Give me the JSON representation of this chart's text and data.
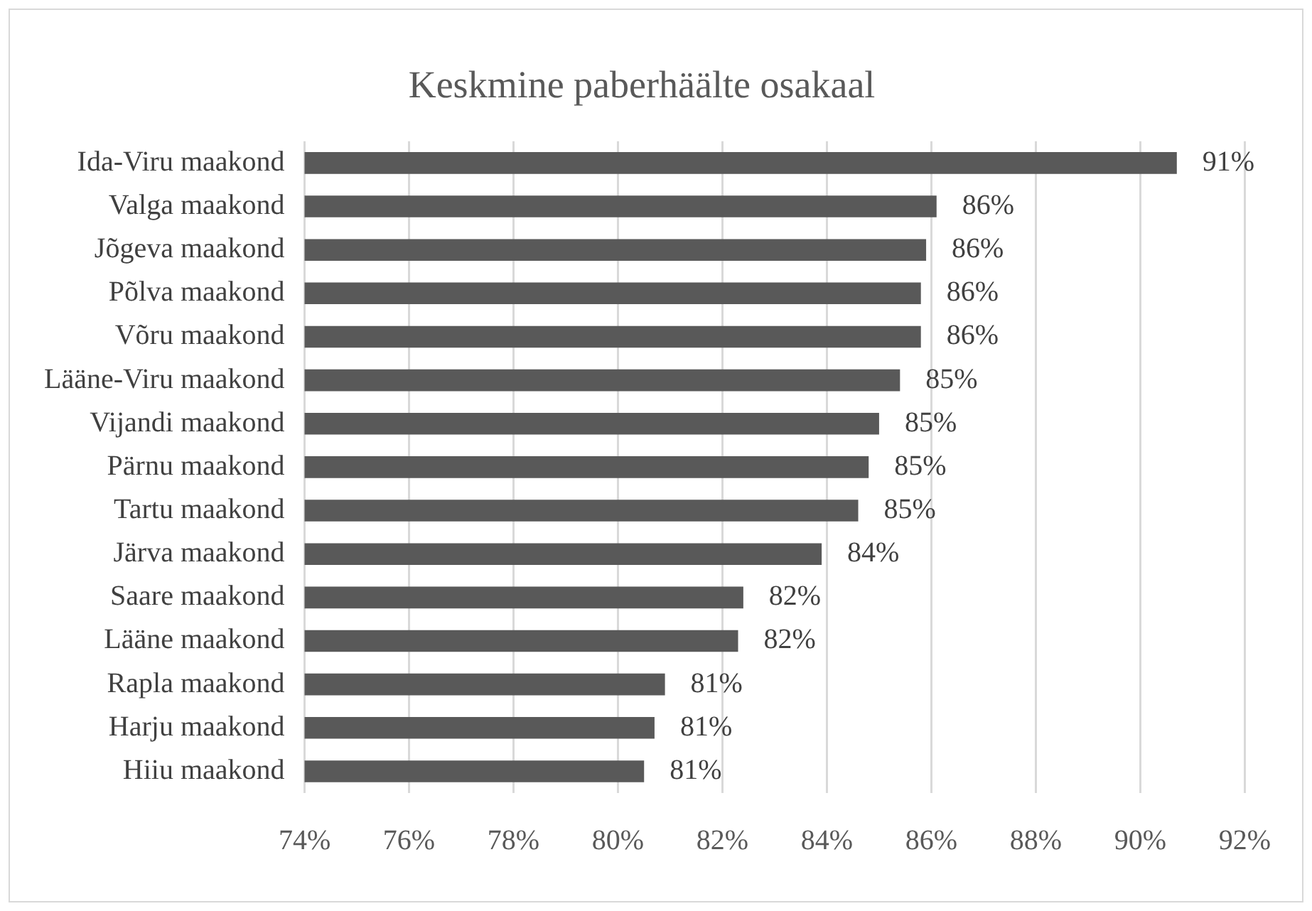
{
  "chart_data": {
    "type": "bar",
    "orientation": "horizontal",
    "title": "Keskmine paberhäälte osakaal",
    "categories": [
      "Ida-Viru maakond",
      "Valga maakond",
      "Jõgeva maakond",
      "Põlva maakond",
      "Võru maakond",
      "Lääne-Viru maakond",
      "Vijandi maakond",
      "Pärnu maakond",
      "Tartu maakond",
      "Järva maakond",
      "Saare maakond",
      "Lääne maakond",
      "Rapla maakond",
      "Harju maakond",
      "Hiiu maakond"
    ],
    "values": [
      90.7,
      86.1,
      85.9,
      85.8,
      85.8,
      85.4,
      85.0,
      84.8,
      84.6,
      83.9,
      82.4,
      82.3,
      80.9,
      80.7,
      80.5
    ],
    "value_labels": [
      "91%",
      "86%",
      "86%",
      "86%",
      "86%",
      "85%",
      "85%",
      "85%",
      "85%",
      "84%",
      "82%",
      "82%",
      "81%",
      "81%",
      "81%"
    ],
    "color": "#595959",
    "xlim": [
      74,
      92
    ],
    "xticks": [
      {
        "value": 74,
        "label": "74%"
      },
      {
        "value": 76,
        "label": "76%"
      },
      {
        "value": 78,
        "label": "78%"
      },
      {
        "value": 80,
        "label": "80%"
      },
      {
        "value": 82,
        "label": "82%"
      },
      {
        "value": 84,
        "label": "84%"
      },
      {
        "value": 86,
        "label": "86%"
      },
      {
        "value": 88,
        "label": "88%"
      },
      {
        "value": 90,
        "label": "90%"
      },
      {
        "value": 92,
        "label": "92%"
      }
    ],
    "grid": "x",
    "legend": false
  }
}
